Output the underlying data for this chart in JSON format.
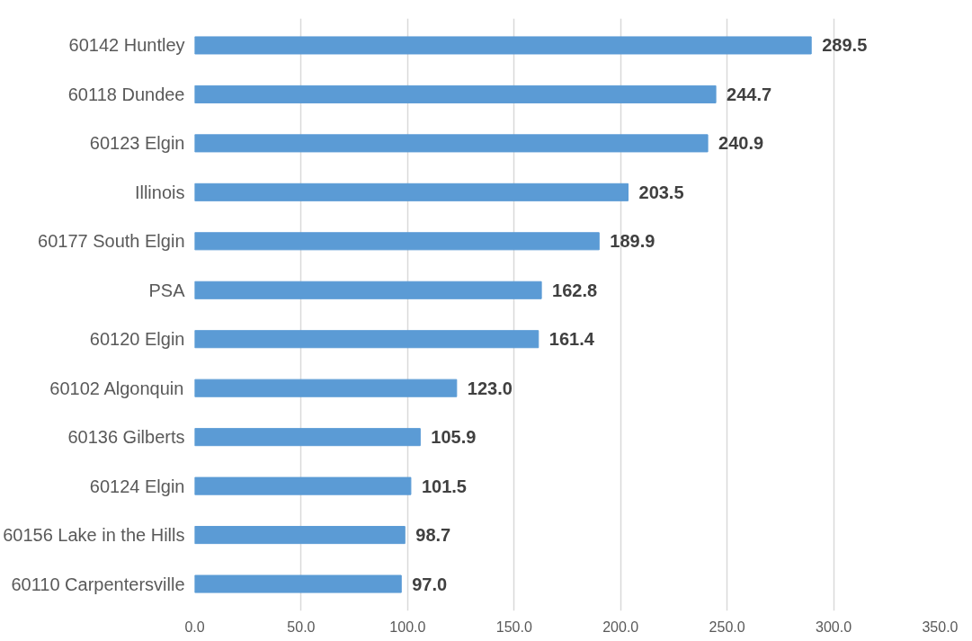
{
  "chart_data": {
    "type": "bar",
    "orientation": "horizontal",
    "categories": [
      "60142 Huntley",
      "60118 Dundee",
      "60123 Elgin",
      "Illinois",
      "60177 South Elgin",
      "PSA",
      "60120 Elgin",
      "60102 Algonquin",
      "60136 Gilberts",
      "60124 Elgin",
      "60156 Lake in the Hills",
      "60110 Carpentersville"
    ],
    "values": [
      289.5,
      244.7,
      240.9,
      203.5,
      189.9,
      162.8,
      161.4,
      123.0,
      105.9,
      101.5,
      98.7,
      97.0
    ],
    "color": "#5b9bd5",
    "xlim": [
      0,
      350
    ],
    "xticks": [
      {
        "value": 0,
        "label": "0.0"
      },
      {
        "value": 50,
        "label": "50.0"
      },
      {
        "value": 100,
        "label": "100.0"
      },
      {
        "value": 150,
        "label": "150.0"
      },
      {
        "value": 200,
        "label": "200.0"
      },
      {
        "value": 250,
        "label": "250.0"
      },
      {
        "value": 300,
        "label": "300.0"
      },
      {
        "value": 350,
        "label": "350.0"
      }
    ],
    "value_labels": [
      "289.5",
      "244.7",
      "240.9",
      "203.5",
      "189.9",
      "162.8",
      "161.4",
      "123.0",
      "105.9",
      "101.5",
      "98.7",
      "97.0"
    ],
    "grid": "x"
  }
}
